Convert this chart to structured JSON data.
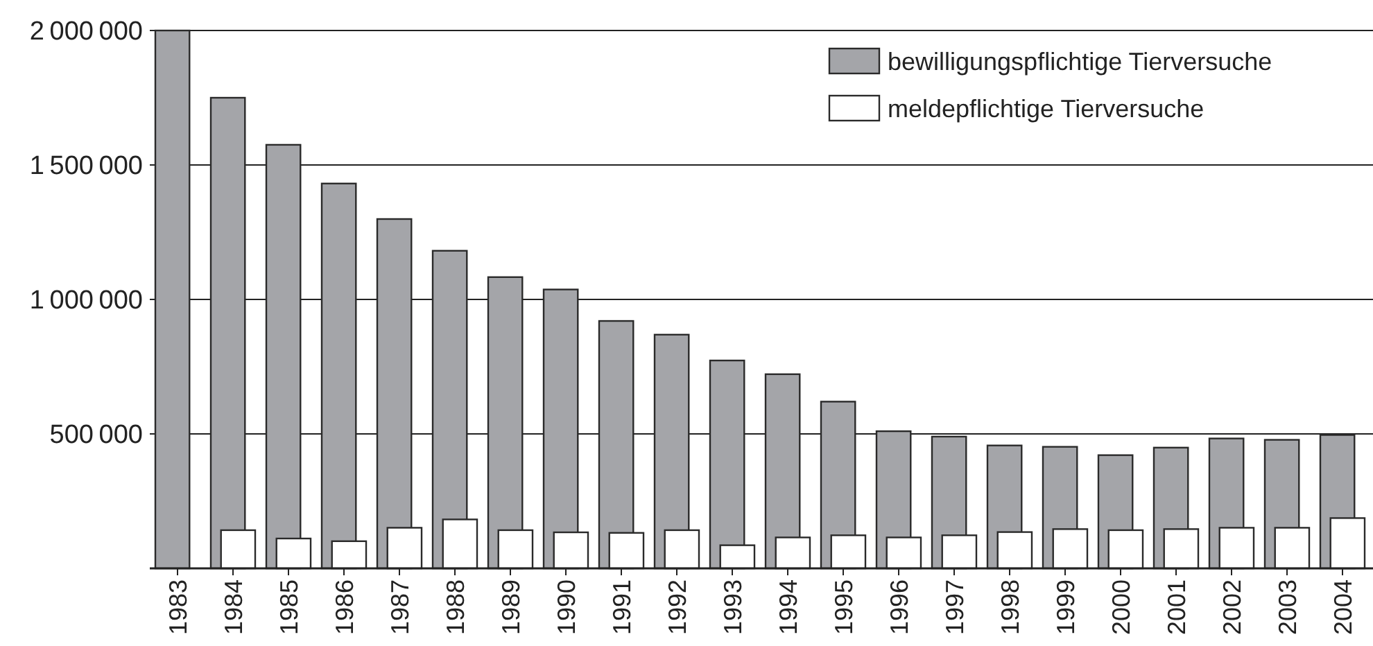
{
  "chart_data": {
    "type": "bar",
    "categories": [
      "1983",
      "1984",
      "1985",
      "1986",
      "1987",
      "1988",
      "1989",
      "1990",
      "1991",
      "1992",
      "1993",
      "1994",
      "1995",
      "1996",
      "1997",
      "1998",
      "1999",
      "2000",
      "2001",
      "2002",
      "2003",
      "2004"
    ],
    "series": [
      {
        "name": "bewilligungspflichtige Tierversuche",
        "color": "#a4a5a9",
        "values": [
          2000000,
          1750000,
          1575000,
          1431000,
          1299000,
          1181000,
          1083000,
          1037000,
          920000,
          869000,
          773000,
          722000,
          620000,
          510000,
          490000,
          457000,
          452000,
          421000,
          449000,
          483000,
          478000,
          496000
        ]
      },
      {
        "name": "meldepflichtige Tierversuche",
        "color": "#ffffff",
        "values": [
          null,
          142000,
          111000,
          101000,
          151000,
          182000,
          142000,
          134000,
          132000,
          142000,
          86000,
          115000,
          123000,
          115000,
          123000,
          135000,
          146000,
          142000,
          146000,
          151000,
          151000,
          187000
        ]
      }
    ],
    "ylim": [
      0,
      2000000
    ],
    "yticks": [
      500000,
      1000000,
      1500000,
      2000000
    ],
    "grid": "y",
    "legend": "top right"
  }
}
